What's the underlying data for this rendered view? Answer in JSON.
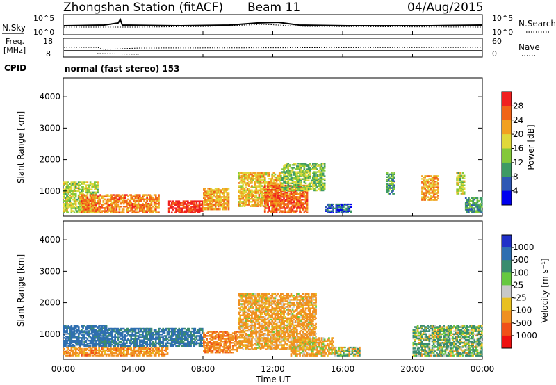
{
  "header": {
    "title": "Zhongshan Station (fitACF)",
    "beam": "Beam 11",
    "date": "04/Aug/2015"
  },
  "noise_panel": {
    "left_label": "N.Sky",
    "right_label": "N.Search",
    "left_ticks": [
      "10^5",
      "10^0"
    ],
    "right_ticks": [
      "10^5",
      "10^0"
    ]
  },
  "freq_panel": {
    "left_label_1": "Freq.",
    "left_label_2": "[MHz]",
    "right_label": "Nave",
    "left_ticks": [
      "18",
      "8"
    ],
    "right_ticks": [
      "60",
      "0"
    ]
  },
  "cpid": {
    "label": "CPID",
    "text": "normal (fast stereo) 153"
  },
  "colors": {
    "power_scale": [
      "#0000ee",
      "#2f58b4",
      "#3e9a64",
      "#84c83a",
      "#e0d83a",
      "#f2a020",
      "#f06418",
      "#f02020"
    ],
    "velocity_scale": [
      "#2030c8",
      "#2f6fb0",
      "#3a8c6e",
      "#66c840",
      "#c8c8c8",
      "#e8c020",
      "#f09020",
      "#f05018",
      "#ee1010"
    ]
  },
  "chart_data": [
    {
      "type": "heatmap",
      "quantity": "Power",
      "ylabel": "Slant Range [km]",
      "ylim": [
        200,
        4600
      ],
      "yticks": [
        "4000",
        "3000",
        "2000",
        "1000"
      ],
      "colorbar_label": "Power [dB]",
      "colorbar_ticks": [
        "28",
        "24",
        "20",
        "16",
        "12",
        "8",
        "4"
      ],
      "colorbar_range": [
        0,
        32
      ],
      "regions": [
        {
          "t": [
            0.0,
            2.0
          ],
          "r": [
            300,
            1300
          ],
          "v": 16
        },
        {
          "t": [
            1.0,
            5.5
          ],
          "r": [
            300,
            900
          ],
          "v": 24
        },
        {
          "t": [
            6.0,
            8.0
          ],
          "r": [
            300,
            700
          ],
          "v": 30
        },
        {
          "t": [
            8.0,
            9.5
          ],
          "r": [
            400,
            1100
          ],
          "v": 22
        },
        {
          "t": [
            10.0,
            12.5
          ],
          "r": [
            500,
            1600
          ],
          "v": 20
        },
        {
          "t": [
            11.5,
            14.0
          ],
          "r": [
            300,
            1200
          ],
          "v": 26
        },
        {
          "t": [
            12.5,
            15.0
          ],
          "r": [
            1000,
            1900
          ],
          "v": 14
        },
        {
          "t": [
            15.0,
            16.5
          ],
          "r": [
            300,
            600
          ],
          "v": 6
        },
        {
          "t": [
            18.5,
            19.0
          ],
          "r": [
            900,
            1600
          ],
          "v": 12
        },
        {
          "t": [
            20.5,
            21.5
          ],
          "r": [
            700,
            1500
          ],
          "v": 22
        },
        {
          "t": [
            22.5,
            23.0
          ],
          "r": [
            900,
            1600
          ],
          "v": 16
        },
        {
          "t": [
            23.0,
            24.0
          ],
          "r": [
            300,
            800
          ],
          "v": 10
        }
      ]
    },
    {
      "type": "heatmap",
      "quantity": "Velocity",
      "ylabel": "Slant Range [km]",
      "ylim": [
        200,
        4600
      ],
      "yticks": [
        "4000",
        "3000",
        "2000",
        "1000"
      ],
      "colorbar_label": "Velocity [m s⁻¹]",
      "colorbar_ticks": [
        "1000",
        "500",
        "100",
        "25",
        "-25",
        "-100",
        "-500",
        "-1000"
      ],
      "regions": [
        {
          "t": [
            0.0,
            2.5
          ],
          "r": [
            600,
            1300
          ],
          "v": 700
        },
        {
          "t": [
            0.0,
            6.0
          ],
          "r": [
            300,
            600
          ],
          "v": -300
        },
        {
          "t": [
            2.0,
            8.0
          ],
          "r": [
            600,
            1200
          ],
          "v": 600
        },
        {
          "t": [
            8.0,
            10.0
          ],
          "r": [
            400,
            1100
          ],
          "v": -400
        },
        {
          "t": [
            10.0,
            14.5
          ],
          "r": [
            500,
            2300
          ],
          "v": -200
        },
        {
          "t": [
            13.0,
            15.5
          ],
          "r": [
            300,
            900
          ],
          "v": -150
        },
        {
          "t": [
            15.5,
            17.0
          ],
          "r": [
            300,
            600
          ],
          "v": 50
        },
        {
          "t": [
            20.0,
            24.0
          ],
          "r": [
            300,
            1300
          ],
          "v": 120
        }
      ]
    }
  ],
  "time_axis": {
    "label": "Time UT",
    "ticks": [
      "00:00",
      "04:00",
      "08:00",
      "12:00",
      "16:00",
      "20:00",
      "00:00"
    ],
    "range_hours": [
      0,
      24
    ]
  }
}
